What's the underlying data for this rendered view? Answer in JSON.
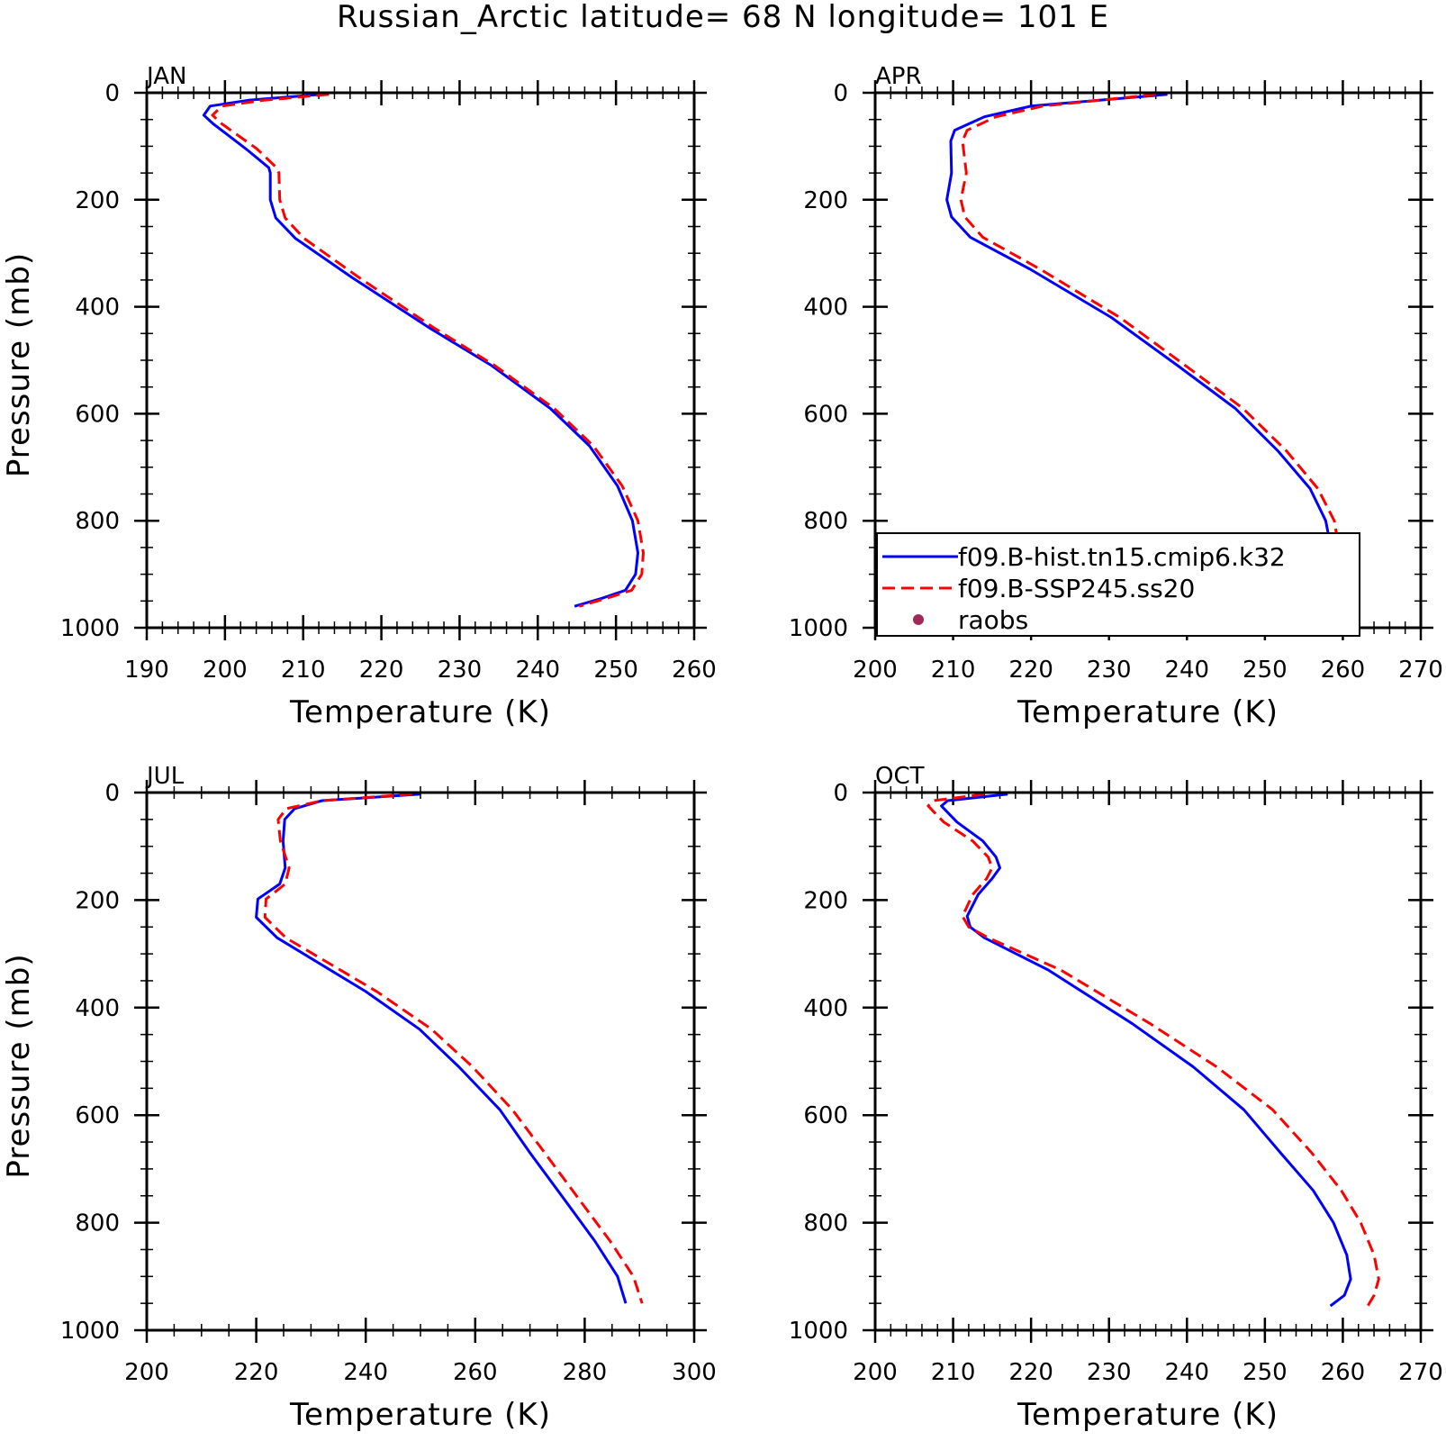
{
  "figure": {
    "title": "Russian_Arctic  latitude= 68 N longitude= 101 E"
  },
  "legend": {
    "entries": [
      {
        "name": "f09.B-hist.tn15.cmip6.k32",
        "color": "#0000ff",
        "style": "solid"
      },
      {
        "name": "f09.B-SSP245.ss20",
        "color": "#ff0000",
        "style": "dashed"
      },
      {
        "name": "raobs",
        "color": "#a0285a",
        "style": "marker"
      }
    ]
  },
  "chart_data": [
    {
      "type": "line",
      "panel": "JAN",
      "xlabel": "Temperature (K)",
      "ylabel": "Pressure (mb)",
      "xlim": [
        190,
        260
      ],
      "xticks": [
        190,
        200,
        210,
        220,
        230,
        240,
        250,
        260
      ],
      "ylim": [
        0,
        1000
      ],
      "yticks": [
        0,
        200,
        400,
        600,
        800,
        1000
      ],
      "y_inverted": true,
      "series": [
        {
          "name": "f09.B-hist.tn15.cmip6.k32",
          "color": "#0000ff",
          "style": "solid",
          "x": [
            212.3,
            203.0,
            198.1,
            197.3,
            198.5,
            202.7,
            205.6,
            205.8,
            205.8,
            206.5,
            209.0,
            216.2,
            226.2,
            234.1,
            241.6,
            246.6,
            250.2,
            252.1,
            252.8,
            252.5,
            251.2,
            248.2,
            244.7
          ],
          "y": [
            3,
            14,
            25,
            42,
            58,
            105,
            140,
            150,
            200,
            234,
            272,
            345,
            440,
            510,
            590,
            660,
            735,
            800,
            860,
            900,
            930,
            945,
            960
          ]
        },
        {
          "name": "f09.B-SSP245.ss20",
          "color": "#ff0000",
          "style": "dashed",
          "x": [
            213.3,
            205.0,
            199.6,
            198.4,
            199.6,
            204.1,
            206.6,
            206.9,
            207.0,
            207.7,
            210.1,
            217.1,
            226.8,
            234.5,
            242.1,
            247.1,
            250.8,
            252.8,
            253.5,
            253.3,
            252.0,
            248.8,
            245.3
          ],
          "y": [
            3,
            14,
            25,
            42,
            58,
            105,
            140,
            150,
            200,
            234,
            272,
            345,
            440,
            510,
            590,
            660,
            735,
            800,
            860,
            900,
            930,
            945,
            960
          ]
        }
      ]
    },
    {
      "type": "line",
      "panel": "APR",
      "xlabel": "Temperature (K)",
      "ylabel": "",
      "xlim": [
        200,
        270
      ],
      "xticks": [
        200,
        210,
        220,
        230,
        240,
        250,
        260,
        270
      ],
      "ylim": [
        0,
        1000
      ],
      "yticks": [
        0,
        200,
        400,
        600,
        800,
        1000
      ],
      "y_inverted": true,
      "series": [
        {
          "name": "f09.B-hist.tn15.cmip6.k32",
          "color": "#0000ff",
          "style": "solid",
          "x": [
            237.5,
            220.0,
            214.0,
            210.2,
            209.7,
            209.8,
            209.2,
            209.8,
            212.2,
            219.9,
            230.3,
            238.8,
            246.2,
            251.7,
            255.8,
            257.8,
            258.6,
            258.8,
            258.4,
            257.9
          ],
          "y": [
            3,
            25,
            45,
            70,
            90,
            150,
            200,
            232,
            270,
            330,
            420,
            510,
            590,
            670,
            740,
            800,
            860,
            900,
            930,
            955
          ]
        },
        {
          "name": "f09.B-SSP245.ss20",
          "color": "#ff0000",
          "style": "dashed",
          "x": [
            236.0,
            221.5,
            215.5,
            211.8,
            211.2,
            211.7,
            211.0,
            211.5,
            213.8,
            221.2,
            231.4,
            239.8,
            247.2,
            252.8,
            256.8,
            258.9,
            259.6,
            259.8,
            259.4,
            258.9
          ],
          "y": [
            3,
            25,
            45,
            70,
            90,
            150,
            200,
            232,
            270,
            330,
            420,
            510,
            590,
            670,
            740,
            800,
            860,
            900,
            930,
            955
          ]
        }
      ]
    },
    {
      "type": "line",
      "panel": "JUL",
      "xlabel": "Temperature (K)",
      "ylabel": "Pressure (mb)",
      "xlim": [
        200,
        300
      ],
      "xticks": [
        200,
        220,
        240,
        260,
        280,
        300
      ],
      "ylim": [
        0,
        1000
      ],
      "yticks": [
        0,
        200,
        400,
        600,
        800,
        1000
      ],
      "y_inverted": true,
      "series": [
        {
          "name": "f09.B-hist.tn15.cmip6.k32",
          "color": "#0000ff",
          "style": "solid",
          "x": [
            250.0,
            232.0,
            227.0,
            225.2,
            224.9,
            225.3,
            224.3,
            220.3,
            220.0,
            223.8,
            240.0,
            249.8,
            257.0,
            264.5,
            270.0,
            275.8,
            281.9,
            286.0,
            287.5
          ],
          "y": [
            3,
            15,
            30,
            50,
            90,
            140,
            170,
            198,
            232,
            270,
            370,
            440,
            510,
            590,
            670,
            750,
            835,
            900,
            950
          ]
        },
        {
          "name": "f09.B-SSP245.ss20",
          "color": "#ff0000",
          "style": "dashed",
          "x": [
            248.5,
            232.0,
            225.5,
            224.0,
            224.4,
            226.0,
            225.3,
            221.8,
            221.6,
            225.4,
            242.0,
            252.0,
            259.5,
            266.8,
            272.7,
            278.5,
            284.7,
            288.9,
            290.5
          ],
          "y": [
            3,
            15,
            30,
            50,
            90,
            140,
            170,
            198,
            232,
            270,
            370,
            440,
            510,
            590,
            670,
            750,
            835,
            900,
            950
          ]
        }
      ]
    },
    {
      "type": "line",
      "panel": "OCT",
      "xlabel": "Temperature (K)",
      "ylabel": "",
      "xlim": [
        200,
        270
      ],
      "xticks": [
        200,
        210,
        220,
        230,
        240,
        250,
        260,
        270
      ],
      "ylim": [
        0,
        1000
      ],
      "yticks": [
        0,
        200,
        400,
        600,
        800,
        1000
      ],
      "y_inverted": true,
      "series": [
        {
          "name": "f09.B-hist.tn15.cmip6.k32",
          "color": "#0000ff",
          "style": "solid",
          "x": [
            217.0,
            209.3,
            208.5,
            210.5,
            213.8,
            215.5,
            216.0,
            215.0,
            213.2,
            211.8,
            212.2,
            214.0,
            222.2,
            233.0,
            240.8,
            247.3,
            252.0,
            256.2,
            258.8,
            260.5,
            261.0,
            260.2,
            258.4
          ],
          "y": [
            3,
            15,
            25,
            55,
            90,
            120,
            140,
            160,
            190,
            230,
            250,
            270,
            330,
            430,
            510,
            590,
            670,
            740,
            800,
            860,
            905,
            935,
            955
          ]
        },
        {
          "name": "f09.B-SSP245.ss20",
          "color": "#ff0000",
          "style": "dashed",
          "x": [
            214.0,
            207.5,
            206.8,
            208.8,
            212.5,
            214.5,
            215.0,
            214.3,
            212.5,
            211.2,
            212.0,
            214.5,
            223.8,
            235.3,
            243.8,
            251.0,
            256.0,
            259.8,
            262.3,
            264.0,
            264.6,
            264.0,
            263.2
          ],
          "y": [
            3,
            15,
            25,
            55,
            90,
            120,
            140,
            160,
            190,
            230,
            250,
            270,
            330,
            430,
            510,
            590,
            670,
            740,
            800,
            860,
            905,
            935,
            955
          ]
        }
      ]
    }
  ]
}
